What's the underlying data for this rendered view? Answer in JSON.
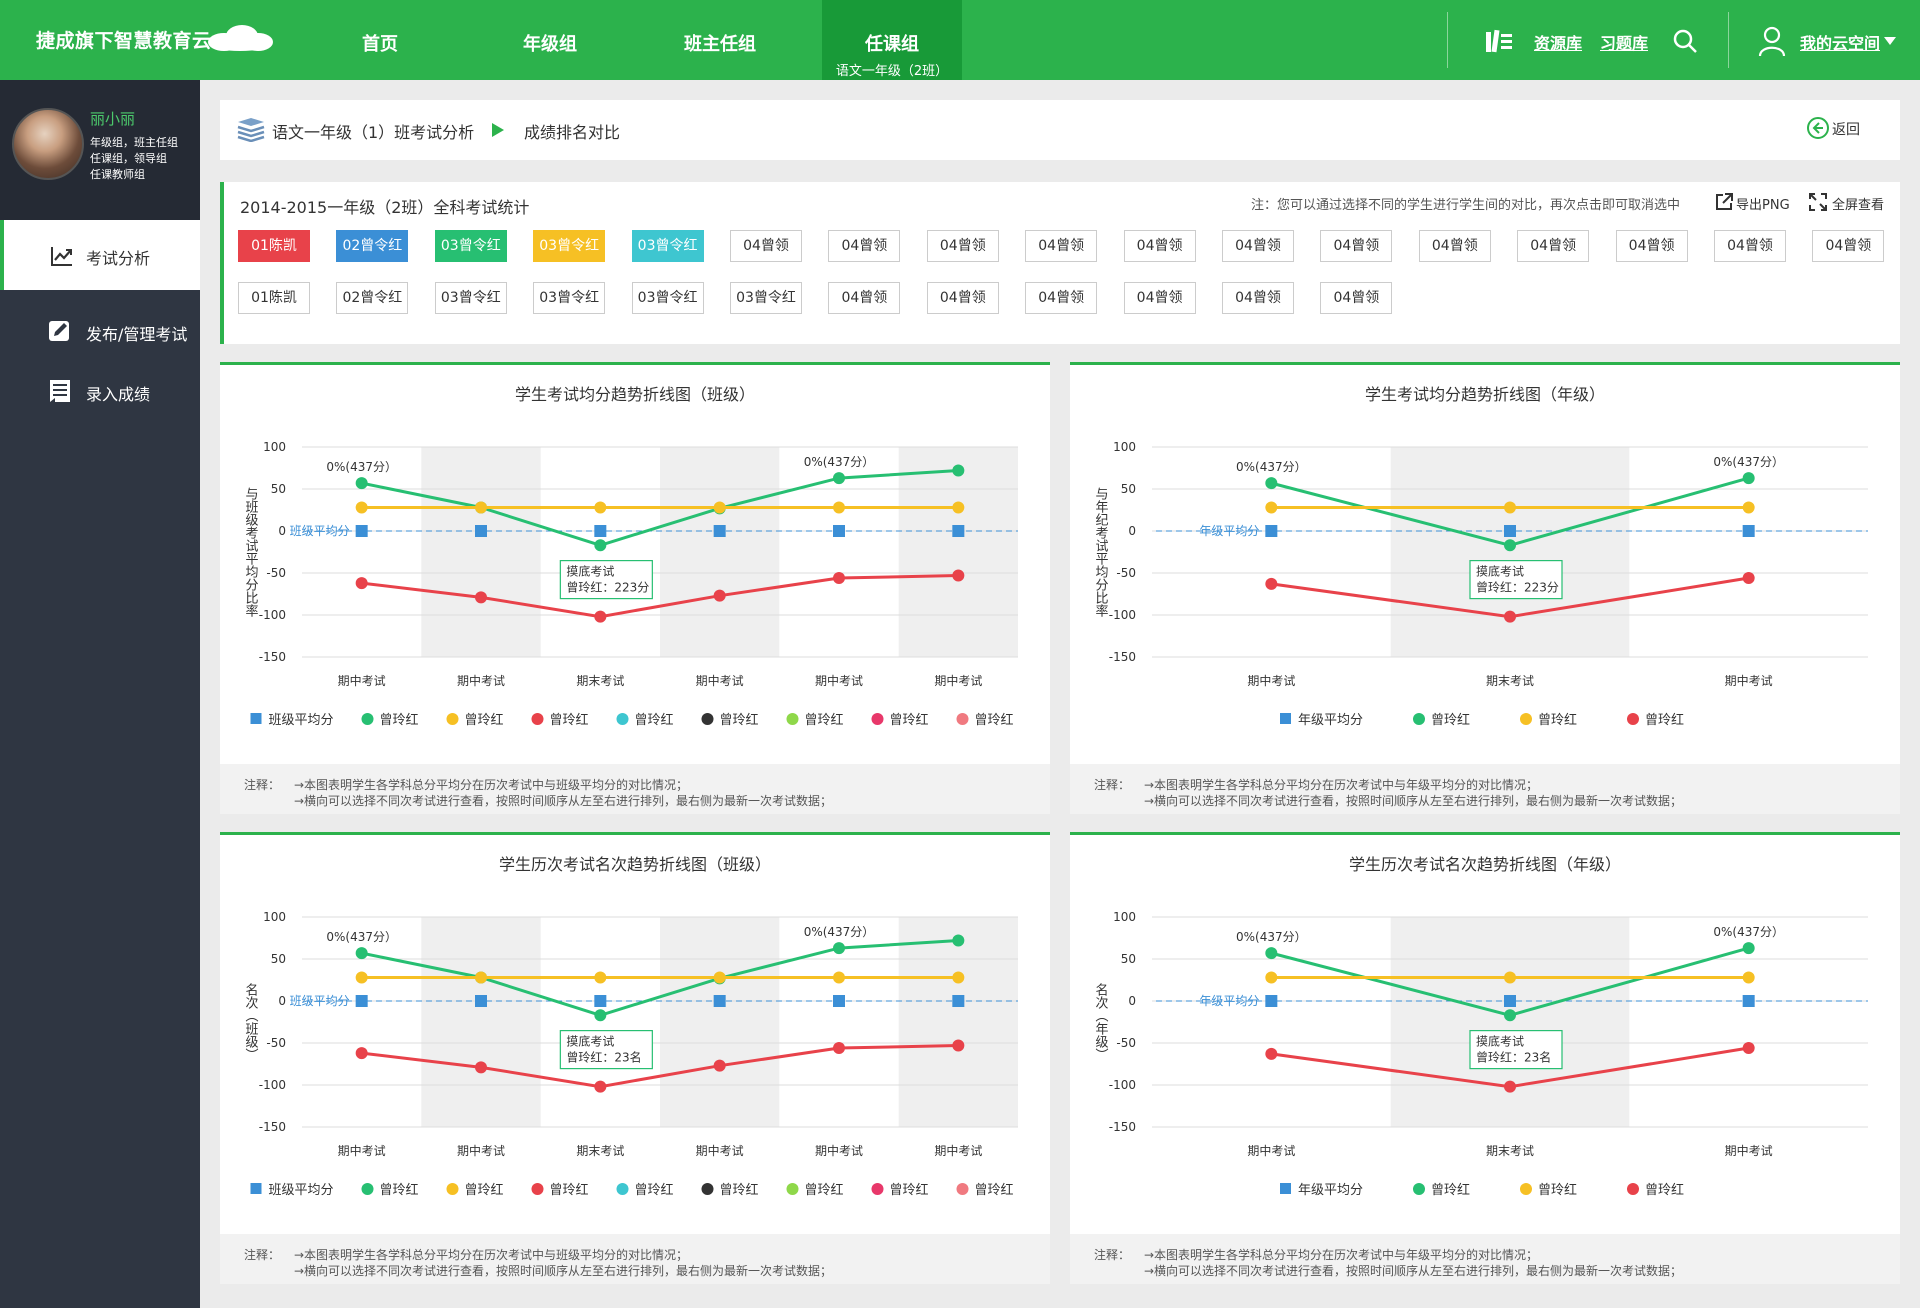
{
  "brand": "捷成旗下智慧教育云",
  "nav": [
    {
      "label": "首页"
    },
    {
      "label": "年级组"
    },
    {
      "label": "班主任组"
    },
    {
      "label": "任课组",
      "sub": "语文一年级（2班）"
    }
  ],
  "top_right": {
    "resource": "资源库",
    "exercise": "习题库",
    "my_space": "我的云空间"
  },
  "profile": {
    "name": "丽小丽",
    "roles": [
      "年级组，班主任组",
      "任课组，领导组",
      "任课教师组"
    ]
  },
  "sidebar": [
    {
      "label": "考试分析",
      "icon": "trend-icon"
    },
    {
      "label": "发布/管理考试",
      "icon": "edit-icon"
    },
    {
      "label": "录入成绩",
      "icon": "list-icon"
    }
  ],
  "breadcrumb": {
    "part1": "语文一年级（1）班考试分析",
    "part2": "成绩排名对比",
    "back": "返回"
  },
  "stats": {
    "title": "2014-2015一年级（2班）全科考试统计",
    "note": "注：您可以通过选择不同的学生进行学生间的对比，再次点击即可取消选中",
    "export": "导出PNG",
    "fullscreen": "全屏查看"
  },
  "students_row1": [
    {
      "name": "01陈凯",
      "color": "red"
    },
    {
      "name": "02曾令红",
      "color": "blue"
    },
    {
      "name": "03曾令红",
      "color": "green"
    },
    {
      "name": "03曾令红",
      "color": "yellow"
    },
    {
      "name": "03曾令红",
      "color": "cyan"
    },
    {
      "name": "04曾领",
      "color": ""
    },
    {
      "name": "04曾领",
      "color": ""
    },
    {
      "name": "04曾领",
      "color": ""
    },
    {
      "name": "04曾领",
      "color": ""
    },
    {
      "name": "04曾领",
      "color": ""
    },
    {
      "name": "04曾领",
      "color": ""
    },
    {
      "name": "04曾领",
      "color": ""
    },
    {
      "name": "04曾领",
      "color": ""
    },
    {
      "name": "04曾领",
      "color": ""
    },
    {
      "name": "04曾领",
      "color": ""
    },
    {
      "name": "04曾领",
      "color": ""
    },
    {
      "name": "04曾领",
      "color": ""
    }
  ],
  "students_row2": [
    "01陈凯",
    "02曾令红",
    "03曾令红",
    "03曾令红",
    "03曾令红",
    "03曾令红",
    "04曾领",
    "04曾领",
    "04曾领",
    "04曾领",
    "04曾领",
    "04曾领"
  ],
  "colors": {
    "primary": "#2cb24c",
    "green": "#27bf72",
    "yellow": "#f6c024",
    "red": "#e8424a",
    "blue": "#3b8fd6",
    "cyan": "#3ec6d0",
    "dark": "#333333",
    "lime": "#8fd84a",
    "pink": "#e8386a",
    "salmon": "#f07a80"
  },
  "chart_data": [
    {
      "type": "line",
      "title": "学生考试均分趋势折线图（班级）",
      "ylabel": "与班级考试平均分比率",
      "ylim": [
        -150,
        100
      ],
      "yticks": [
        "100",
        "50",
        "0",
        "-50",
        "-100",
        "-150"
      ],
      "categories": [
        "期中考试",
        "期中考试",
        "期末考试",
        "期中考试",
        "期中考试",
        "期中考试"
      ],
      "avg_label": "班级平均分",
      "series": [
        {
          "name": "班级平均分",
          "color": "blue",
          "marker": "square",
          "values": [
            0,
            0,
            0,
            0,
            0,
            0
          ]
        },
        {
          "name": "曾玲红",
          "color": "green",
          "values": [
            57,
            28,
            -17,
            27,
            63,
            72
          ]
        },
        {
          "name": "曾玲红",
          "color": "yellow",
          "values": [
            28,
            28,
            28,
            28,
            28,
            28
          ]
        },
        {
          "name": "曾玲红",
          "color": "red",
          "values": [
            -62,
            -79,
            -102,
            -77,
            -56,
            -53
          ]
        }
      ],
      "legend": [
        "班级平均分",
        "曾玲红",
        "曾玲红",
        "曾玲红",
        "曾玲红",
        "曾玲红",
        "曾玲红",
        "曾玲红",
        "曾玲红"
      ],
      "legend_colors": [
        "blue",
        "green",
        "yellow",
        "red",
        "cyan",
        "dark",
        "lime",
        "pink",
        "salmon"
      ],
      "annotations": [
        {
          "text": "0%(437分）",
          "index": 0,
          "series": 1
        },
        {
          "text": "0%(437分）",
          "index": 4,
          "series": 1
        },
        {
          "text": "0%(437分）",
          "index": 2,
          "series": 1,
          "below": true
        }
      ],
      "tooltip": {
        "index": 2,
        "title": "摸底考试",
        "value": "曾玲红：223分"
      },
      "notes": [
        "→本图表明学生各学科总分平均分在历次考试中与班级平均分的对比情况；",
        "→横向可以选择不同次考试进行查看，按照时间顺序从左至右进行排列，最右侧为最新一次考试数据；"
      ]
    },
    {
      "type": "line",
      "title": "学生考试均分趋势折线图（年级）",
      "ylabel": "与年纪考试平均分比率",
      "ylim": [
        -150,
        100
      ],
      "yticks": [
        "100",
        "50",
        "0",
        "-50",
        "-100",
        "-150"
      ],
      "categories": [
        "期中考试",
        "期末考试",
        "期中考试"
      ],
      "avg_label": "年级平均分",
      "series": [
        {
          "name": "年级平均分",
          "color": "blue",
          "marker": "square",
          "values": [
            0,
            0,
            0
          ]
        },
        {
          "name": "曾玲红",
          "color": "green",
          "values": [
            57,
            -17,
            63
          ]
        },
        {
          "name": "曾玲红",
          "color": "yellow",
          "values": [
            28,
            28,
            28
          ]
        },
        {
          "name": "曾玲红",
          "color": "red",
          "values": [
            -63,
            -102,
            -56
          ]
        }
      ],
      "legend": [
        "年级平均分",
        "曾玲红",
        "曾玲红",
        "曾玲红"
      ],
      "legend_colors": [
        "blue",
        "green",
        "yellow",
        "red"
      ],
      "annotations": [
        {
          "text": "0%(437分）",
          "index": 0,
          "series": 1
        },
        {
          "text": "0%(437分）",
          "index": 2,
          "series": 1
        },
        {
          "text": "0%(437分）",
          "index": 1,
          "series": 1,
          "below": true
        }
      ],
      "tooltip": {
        "index": 1,
        "title": "摸底考试",
        "value": "曾玲红：223分"
      },
      "notes": [
        "→本图表明学生各学科总分平均分在历次考试中与年级平均分的对比情况；",
        "→横向可以选择不同次考试进行查看，按照时间顺序从左至右进行排列，最右侧为最新一次考试数据；"
      ]
    },
    {
      "type": "line",
      "title": "学生历次考试名次趋势折线图（班级）",
      "ylabel": "名次（班级）",
      "ylim": [
        -150,
        100
      ],
      "yticks": [
        "100",
        "50",
        "0",
        "-50",
        "-100",
        "-150"
      ],
      "categories": [
        "期中考试",
        "期中考试",
        "期末考试",
        "期中考试",
        "期中考试",
        "期中考试"
      ],
      "avg_label": "班级平均分",
      "series": [
        {
          "name": "班级平均分",
          "color": "blue",
          "marker": "square",
          "values": [
            0,
            0,
            0,
            0,
            0,
            0
          ]
        },
        {
          "name": "曾玲红",
          "color": "green",
          "values": [
            57,
            28,
            -17,
            27,
            63,
            72
          ]
        },
        {
          "name": "曾玲红",
          "color": "yellow",
          "values": [
            28,
            28,
            28,
            28,
            28,
            28
          ]
        },
        {
          "name": "曾玲红",
          "color": "red",
          "values": [
            -62,
            -79,
            -102,
            -77,
            -56,
            -53
          ]
        }
      ],
      "legend": [
        "班级平均分",
        "曾玲红",
        "曾玲红",
        "曾玲红",
        "曾玲红",
        "曾玲红",
        "曾玲红",
        "曾玲红",
        "曾玲红"
      ],
      "legend_colors": [
        "blue",
        "green",
        "yellow",
        "red",
        "cyan",
        "dark",
        "lime",
        "pink",
        "salmon"
      ],
      "annotations": [
        {
          "text": "0%(437分）",
          "index": 0,
          "series": 1
        },
        {
          "text": "0%(437分）",
          "index": 4,
          "series": 1
        },
        {
          "text": "0%(437分）",
          "index": 2,
          "series": 1,
          "below": true
        }
      ],
      "tooltip": {
        "index": 2,
        "title": "摸底考试",
        "value": "曾玲红：23名"
      },
      "notes": [
        "→本图表明学生各学科总分平均分在历次考试中与班级平均分的对比情况；",
        "→横向可以选择不同次考试进行查看，按照时间顺序从左至右进行排列，最右侧为最新一次考试数据；"
      ]
    },
    {
      "type": "line",
      "title": "学生历次考试名次趋势折线图（年级）",
      "ylabel": "名次（年级）",
      "ylim": [
        -150,
        100
      ],
      "yticks": [
        "100",
        "50",
        "0",
        "-50",
        "-100",
        "-150"
      ],
      "categories": [
        "期中考试",
        "期末考试",
        "期中考试"
      ],
      "avg_label": "年级平均分",
      "series": [
        {
          "name": "年级平均分",
          "color": "blue",
          "marker": "square",
          "values": [
            0,
            0,
            0
          ]
        },
        {
          "name": "曾玲红",
          "color": "green",
          "values": [
            57,
            -17,
            63
          ]
        },
        {
          "name": "曾玲红",
          "color": "yellow",
          "values": [
            28,
            28,
            28
          ]
        },
        {
          "name": "曾玲红",
          "color": "red",
          "values": [
            -63,
            -102,
            -56
          ]
        }
      ],
      "legend": [
        "年级平均分",
        "曾玲红",
        "曾玲红",
        "曾玲红"
      ],
      "legend_colors": [
        "blue",
        "green",
        "yellow",
        "red"
      ],
      "annotations": [
        {
          "text": "0%(437分）",
          "index": 0,
          "series": 1
        },
        {
          "text": "0%(437分）",
          "index": 2,
          "series": 1
        },
        {
          "text": "0%(437分）",
          "index": 1,
          "series": 1,
          "below": true
        }
      ],
      "tooltip": {
        "index": 1,
        "title": "摸底考试",
        "value": "曾玲红：23名"
      },
      "notes": [
        "→本图表明学生各学科总分平均分在历次考试中与年级平均分的对比情况；",
        "→横向可以选择不同次考试进行查看，按照时间顺序从左至右进行排列，最右侧为最新一次考试数据；"
      ]
    }
  ]
}
